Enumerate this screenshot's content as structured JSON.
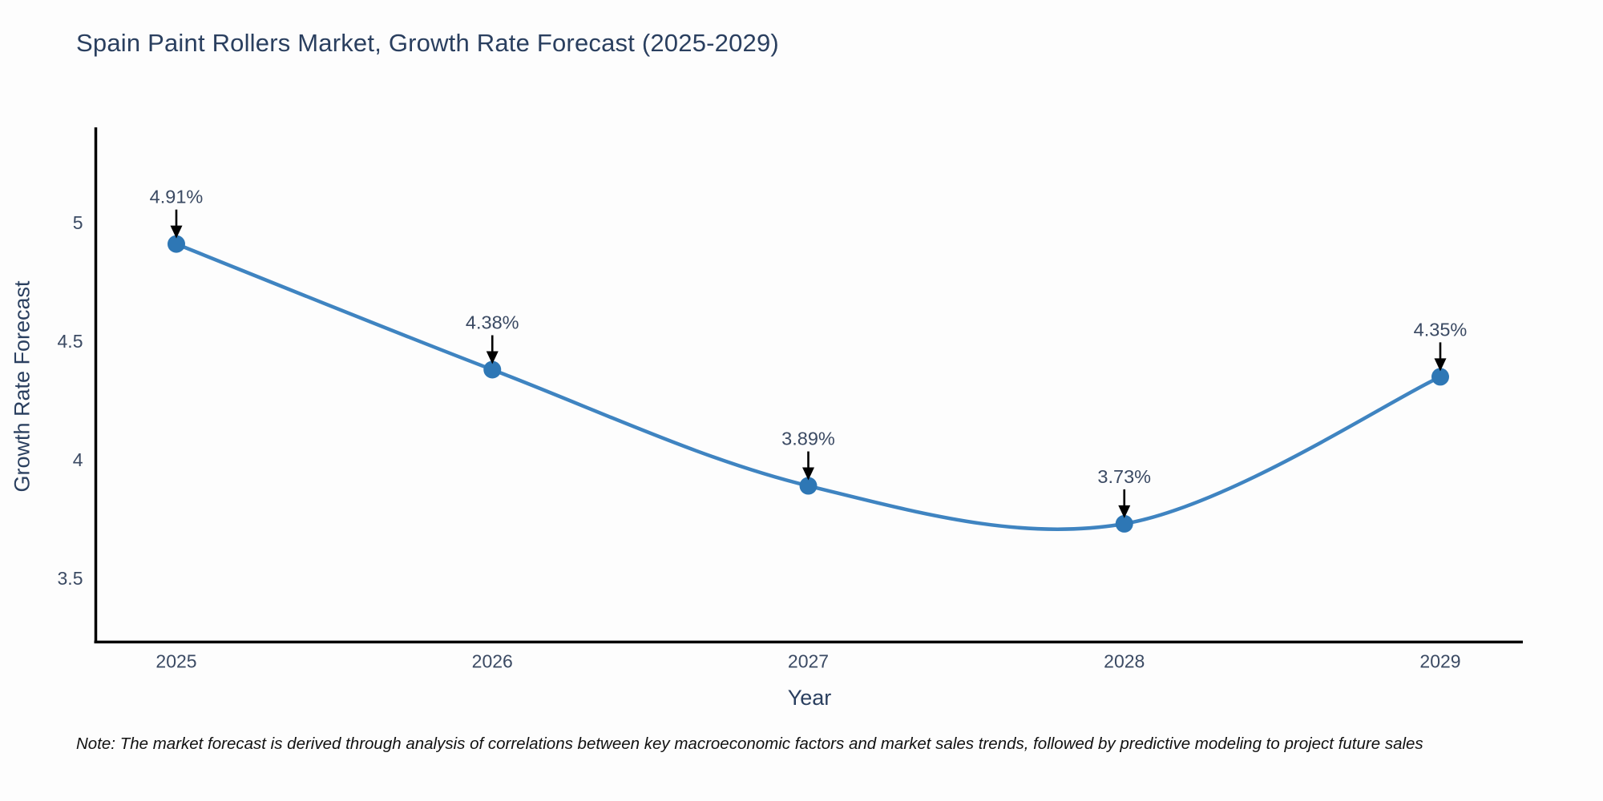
{
  "title": "Spain Paint Rollers Market, Growth Rate Forecast (2025-2029)",
  "note": "Note: The market forecast is derived through analysis of correlations between key macroeconomic factors and market sales trends, followed by predictive modeling to project future sales",
  "chart_data": {
    "type": "line",
    "title": "Spain Paint Rollers Market, Growth Rate Forecast (2025-2029)",
    "xlabel": "Year",
    "ylabel": "Growth Rate Forecast",
    "x": [
      2025,
      2026,
      2027,
      2028,
      2029
    ],
    "series": [
      {
        "name": "Growth Rate Forecast",
        "values": [
          4.91,
          4.38,
          3.89,
          3.73,
          4.35
        ]
      }
    ],
    "point_labels": [
      "4.91%",
      "4.38%",
      "3.89%",
      "3.73%",
      "4.35%"
    ],
    "xticks": [
      "2025",
      "2026",
      "2027",
      "2028",
      "2029"
    ],
    "yticks": [
      5,
      4.5,
      4,
      3.5
    ],
    "ylim": [
      3.25,
      5.4
    ],
    "grid": false,
    "legend": "none",
    "line_shape": "spline",
    "annotation_style": "black-down-arrows",
    "colors": {
      "line": "#3f84c1",
      "marker": "#2e77b5",
      "arrow": "#000000",
      "axis": "#000000",
      "title_text": "#2a3f5f",
      "tick_text": "#3b4a63",
      "label_text": "#3b4a63",
      "note_text": "#111111",
      "background": "#fdfdfd"
    }
  }
}
